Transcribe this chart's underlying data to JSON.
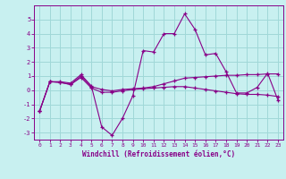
{
  "xlabel": "Windchill (Refroidissement éolien,°C)",
  "background_color": "#c8f0f0",
  "grid_color": "#a0d8d8",
  "line_color": "#880088",
  "x_values": [
    0,
    1,
    2,
    3,
    4,
    5,
    6,
    7,
    8,
    9,
    10,
    11,
    12,
    13,
    14,
    15,
    16,
    17,
    18,
    19,
    20,
    21,
    22,
    23
  ],
  "line1": [
    -1.5,
    0.6,
    0.6,
    0.5,
    1.1,
    0.3,
    -2.6,
    -3.2,
    -2.0,
    -0.4,
    2.8,
    2.7,
    4.0,
    4.0,
    5.4,
    4.3,
    2.5,
    2.6,
    1.3,
    -0.2,
    -0.2,
    0.2,
    1.2,
    -0.7
  ],
  "line2": [
    -1.5,
    0.6,
    0.55,
    0.4,
    1.0,
    0.25,
    0.05,
    -0.05,
    0.05,
    0.1,
    0.15,
    0.25,
    0.45,
    0.65,
    0.85,
    0.9,
    0.95,
    1.0,
    1.05,
    1.05,
    1.1,
    1.1,
    1.15,
    1.15
  ],
  "line3": [
    -1.5,
    0.6,
    0.55,
    0.4,
    0.9,
    0.15,
    -0.15,
    -0.15,
    -0.05,
    0.05,
    0.1,
    0.15,
    0.2,
    0.25,
    0.25,
    0.15,
    0.05,
    -0.05,
    -0.15,
    -0.25,
    -0.3,
    -0.3,
    -0.35,
    -0.45
  ],
  "ylim": [
    -3.5,
    6.0
  ],
  "xlim": [
    -0.5,
    23.5
  ],
  "yticks": [
    -3,
    -2,
    -1,
    0,
    1,
    2,
    3,
    4,
    5
  ],
  "xticks": [
    0,
    1,
    2,
    3,
    4,
    5,
    6,
    7,
    8,
    9,
    10,
    11,
    12,
    13,
    14,
    15,
    16,
    17,
    18,
    19,
    20,
    21,
    22,
    23
  ]
}
